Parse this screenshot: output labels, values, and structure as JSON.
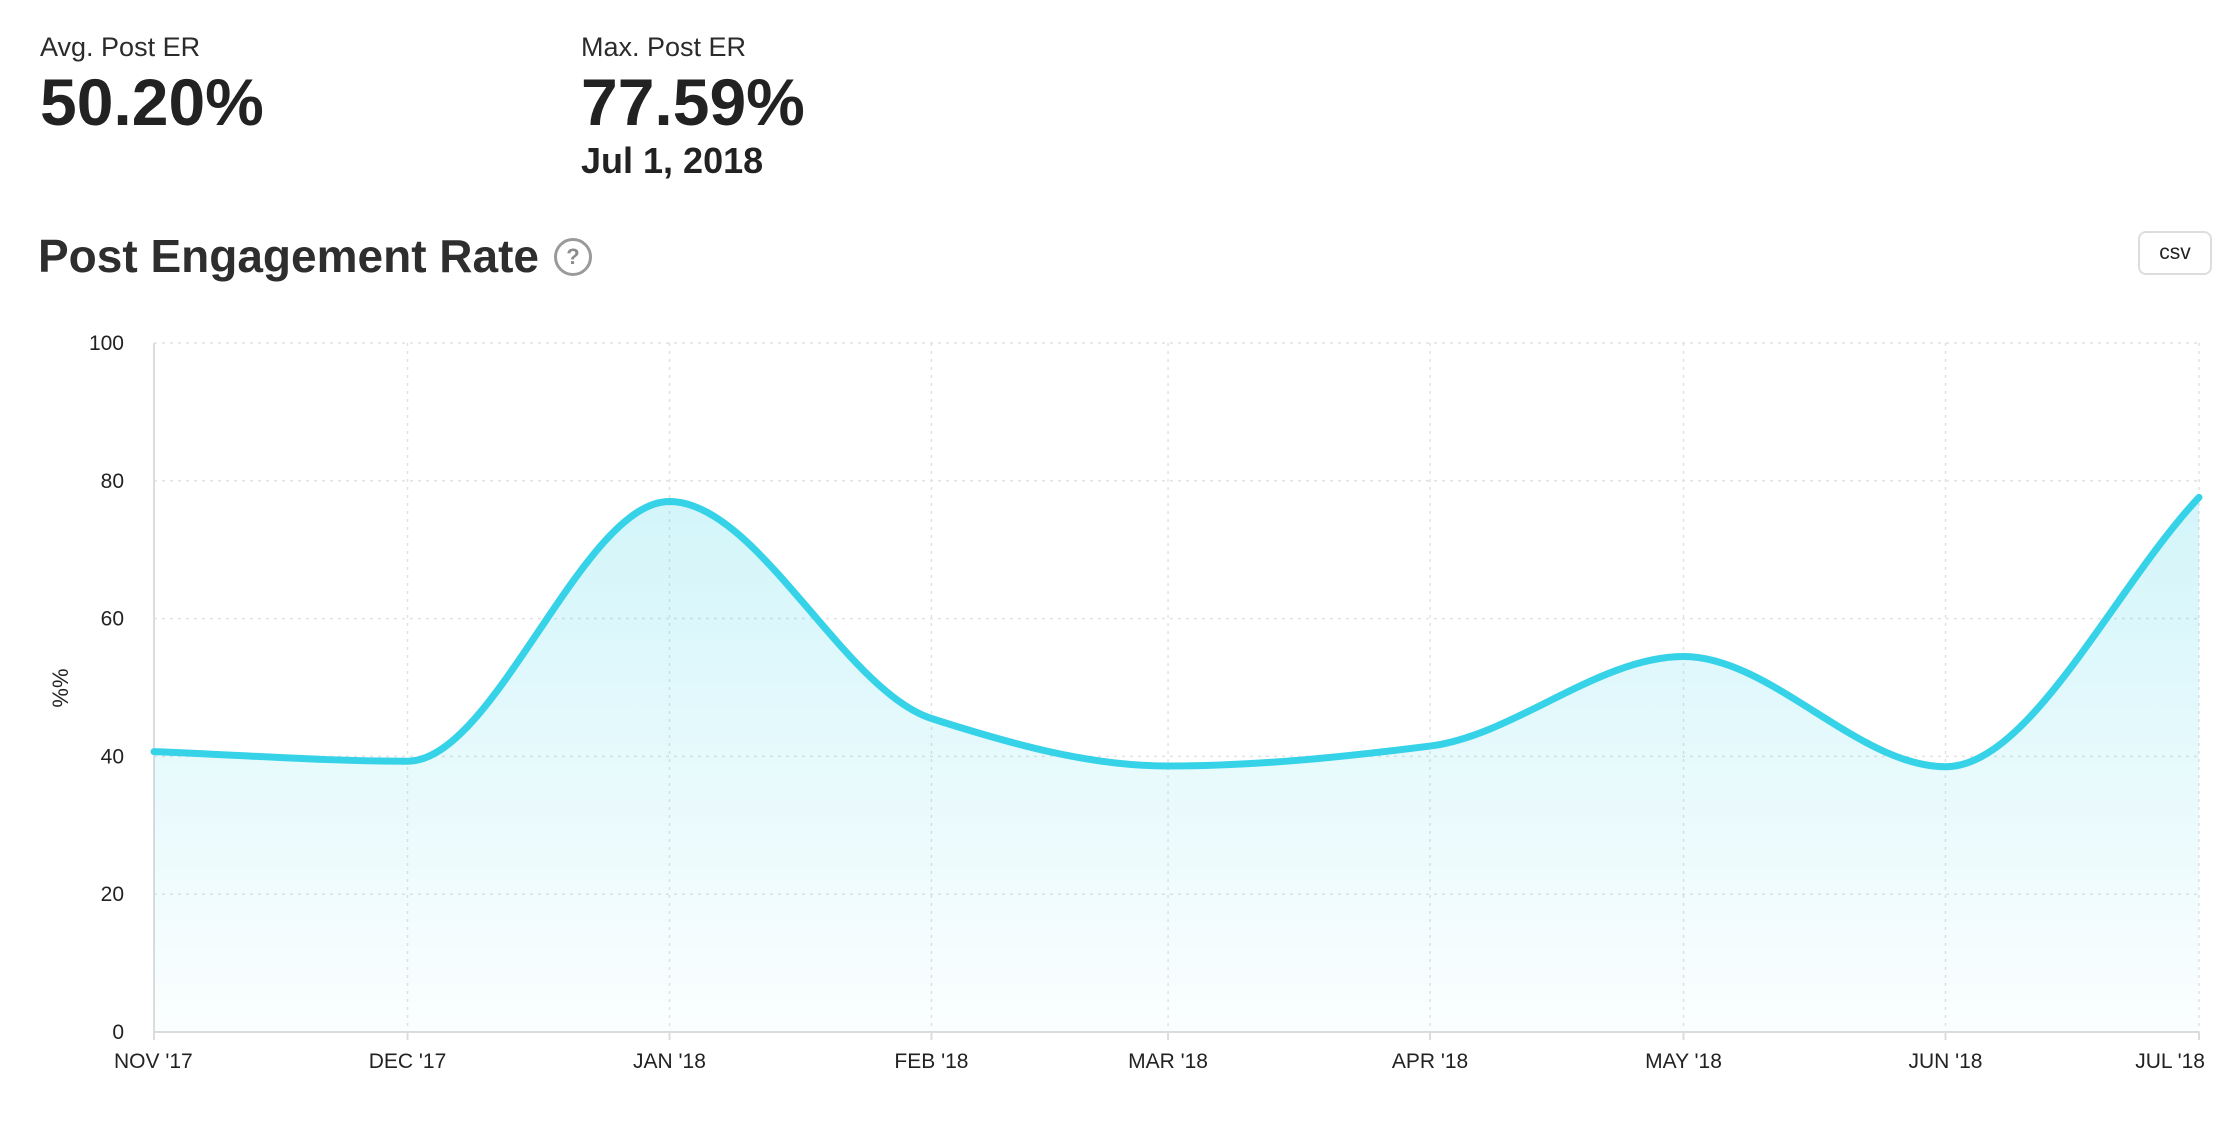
{
  "stats": {
    "avg": {
      "label": "Avg. Post ER",
      "value": "50.20%"
    },
    "max": {
      "label": "Max. Post ER",
      "value": "77.59%",
      "date": "Jul 1, 2018"
    }
  },
  "section": {
    "title": "Post Engagement Rate",
    "help_icon": "question-circle-icon",
    "csv_label": "csv"
  },
  "chart_data": {
    "type": "area",
    "title": "Post Engagement Rate",
    "xlabel": "",
    "ylabel": "%%",
    "categories": [
      "NOV '17",
      "DEC '17",
      "JAN '18",
      "FEB '18",
      "MAR '18",
      "APR '18",
      "MAY '18",
      "JUN '18",
      "JUL '18"
    ],
    "x": [
      "2017-11-01",
      "2017-12-01",
      "2018-01-01",
      "2018-02-01",
      "2018-03-01",
      "2018-04-01",
      "2018-05-01",
      "2018-06-01",
      "2018-07-01"
    ],
    "values": [
      40.7,
      39.3,
      77.0,
      45.5,
      38.6,
      41.5,
      54.5,
      38.5,
      77.59
    ],
    "ylim": [
      0,
      100
    ],
    "yticks": [
      0,
      20,
      40,
      60,
      80,
      100
    ],
    "grid": true,
    "legend": "none",
    "colors": {
      "line": "#35d2e8",
      "fill": "#35d2e8",
      "grid": "#e2e2e2",
      "axis": "#dcdcdc"
    }
  }
}
